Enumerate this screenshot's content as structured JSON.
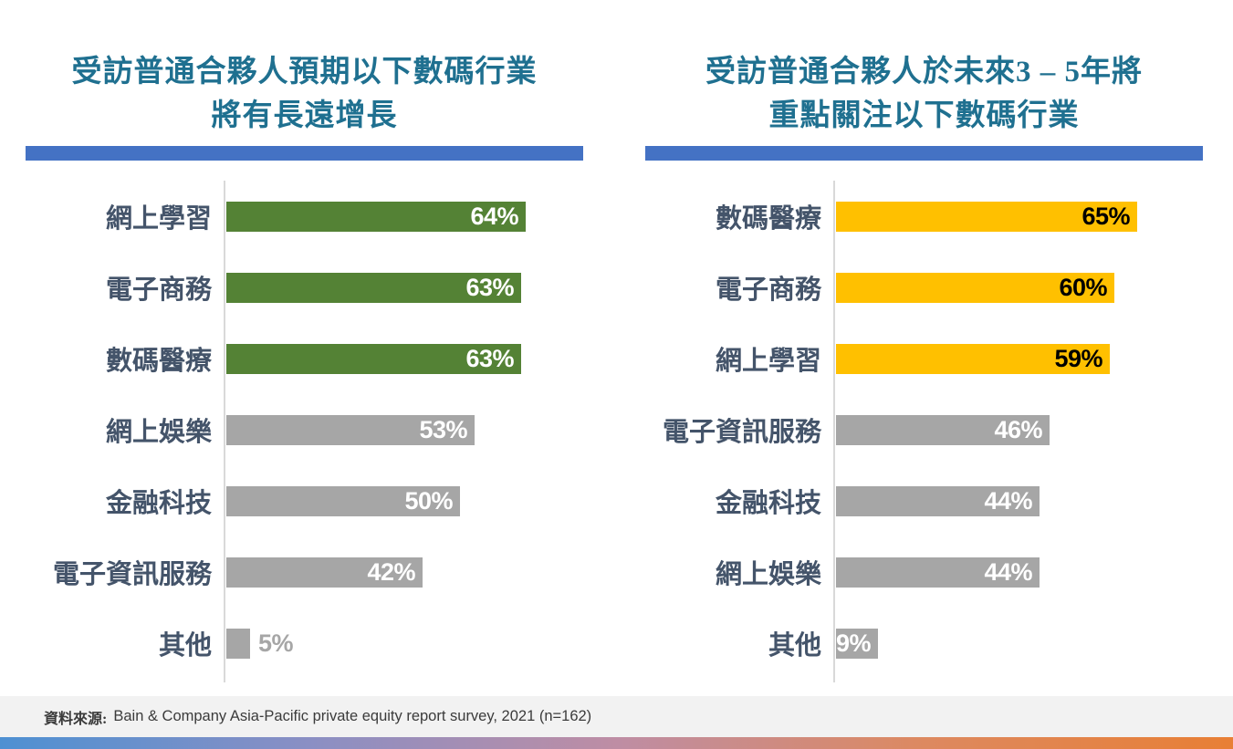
{
  "left_chart": {
    "title_lines": [
      "受訪普通合夥人預期以下數碼行業",
      "將有長遠增長"
    ]
  },
  "right_chart": {
    "title_lines": [
      "受訪普通合夥人於未來3 – 5年將",
      "重點關注以下數碼行業"
    ]
  },
  "footer": {
    "source_label": "資料來源:",
    "source_text": "Bain & Company Asia-Pacific private equity report survey, 2021 (n=162)"
  },
  "palette": {
    "title_text": "#1F7090",
    "title_underline": "#4472C4",
    "category_label": "#44546A",
    "axis_line": "#D9D9D9",
    "green_bar": "#548235",
    "yellow_bar": "#FFC000",
    "gray_bar": "#A6A6A6",
    "footer_band": "#F2F2F2",
    "footer_text": "#3B3B3B",
    "gradient_stops": [
      "#4E90D2",
      "#8A8FC4",
      "#BE8DA4",
      "#DD8960",
      "#E87F35"
    ]
  },
  "chart_data": [
    {
      "id": "growth",
      "type": "bar",
      "orientation": "horizontal",
      "title": "受訪普通合夥人預期以下數碼行業 將有長遠增長",
      "categories": [
        "網上學習",
        "電子商務",
        "數碼醫療",
        "網上娛樂",
        "金融科技",
        "電子資訊服務",
        "其他"
      ],
      "values": [
        64,
        63,
        63,
        53,
        50,
        42,
        5
      ],
      "value_labels": [
        "64%",
        "63%",
        "63%",
        "53%",
        "50%",
        "42%",
        "5%"
      ],
      "unit": "%",
      "xlim": [
        0,
        70
      ],
      "grid": false,
      "emphasis_count": 3,
      "emphasis_color": "#548235",
      "muted_color": "#A6A6A6",
      "emphasis_label_color": "#FFFFFF",
      "muted_label_color": "#FFFFFF",
      "outside_label_indices": [
        6
      ],
      "outside_label_color": "#A6A6A6"
    },
    {
      "id": "focus",
      "type": "bar",
      "orientation": "horizontal",
      "title": "受訪普通合夥人於未來3 – 5年將 重點關注以下數碼行業",
      "categories": [
        "數碼醫療",
        "電子商務",
        "網上學習",
        "電子資訊服務",
        "金融科技",
        "網上娛樂",
        "其他"
      ],
      "values": [
        65,
        60,
        59,
        46,
        44,
        44,
        9
      ],
      "value_labels": [
        "65%",
        "60%",
        "59%",
        "46%",
        "44%",
        "44%",
        "9%"
      ],
      "unit": "%",
      "xlim": [
        0,
        70
      ],
      "grid": false,
      "emphasis_count": 3,
      "emphasis_color": "#FFC000",
      "muted_color": "#A6A6A6",
      "emphasis_label_color": "#000000",
      "muted_label_color": "#FFFFFF",
      "outside_label_indices": [],
      "outside_label_color": "#A6A6A6"
    }
  ]
}
